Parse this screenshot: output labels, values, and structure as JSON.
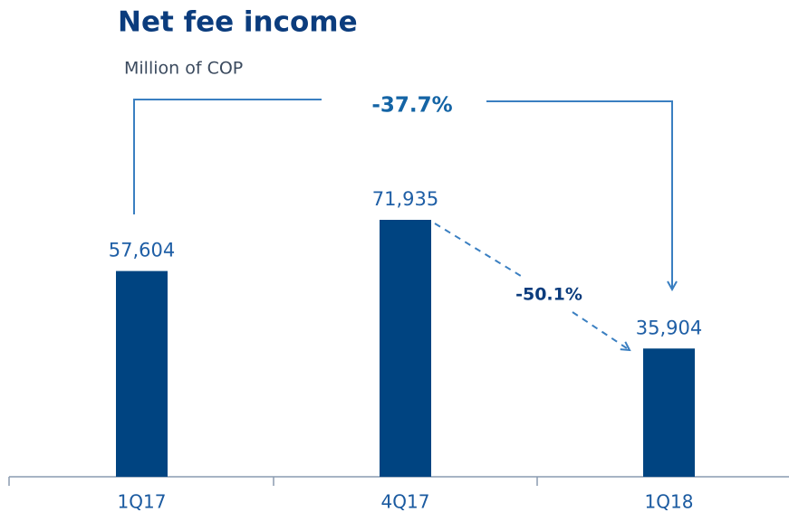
{
  "chart_data": {
    "type": "bar",
    "title": "Net fee income",
    "subtitle": "Million of COP",
    "categories": [
      "1Q17",
      "4Q17",
      "1Q18"
    ],
    "values": [
      57604,
      71935,
      35904
    ],
    "value_labels": [
      "57,604",
      "71,935",
      "35,904"
    ],
    "color": "#004481",
    "annotations": [
      "-37.7%",
      "-50.1%"
    ]
  }
}
